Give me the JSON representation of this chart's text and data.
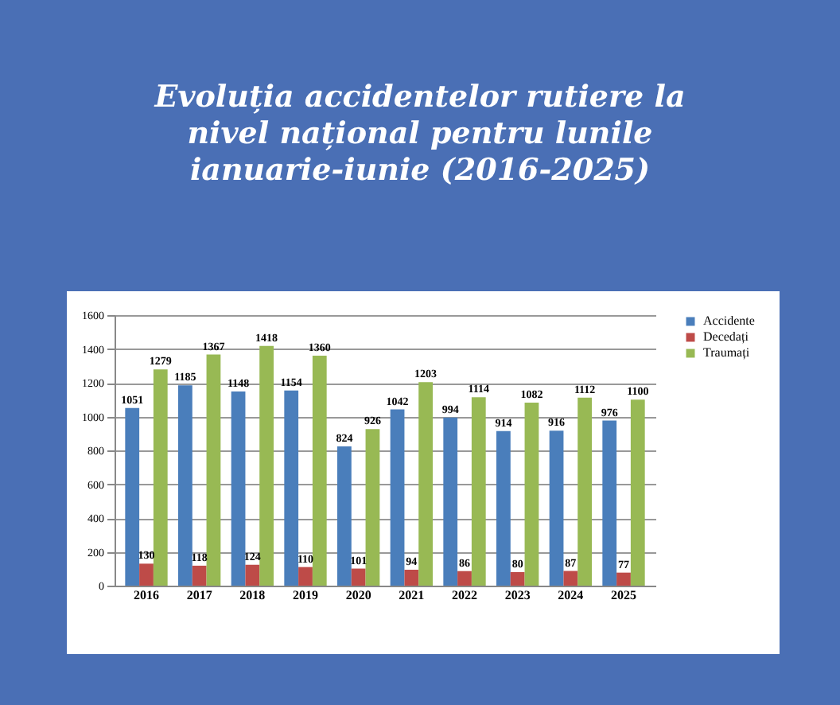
{
  "chart_data": {
    "type": "bar",
    "title": "Evoluția accidentelor rutiere la nivel național pentru lunile ianuarie-iunie (2016-2025)",
    "categories": [
      "2016",
      "2017",
      "2018",
      "2019",
      "2020",
      "2021",
      "2022",
      "2023",
      "2024",
      "2025"
    ],
    "series": [
      {
        "name": "Accidente",
        "color": "#4a7ebb",
        "values": [
          1051,
          1185,
          1148,
          1154,
          824,
          1042,
          994,
          914,
          916,
          976
        ]
      },
      {
        "name": "Decedați",
        "color": "#be4b48",
        "values": [
          130,
          118,
          124,
          110,
          101,
          94,
          86,
          80,
          87,
          77
        ]
      },
      {
        "name": "Traumați",
        "color": "#98b954",
        "values": [
          1279,
          1367,
          1418,
          1360,
          926,
          1203,
          1114,
          1082,
          1112,
          1100
        ]
      }
    ],
    "ylim": [
      0,
      1600
    ],
    "yticks": [
      0,
      200,
      400,
      600,
      800,
      1000,
      1200,
      1400,
      1600
    ],
    "grid": "y",
    "legend": "right",
    "data_labels": true
  }
}
